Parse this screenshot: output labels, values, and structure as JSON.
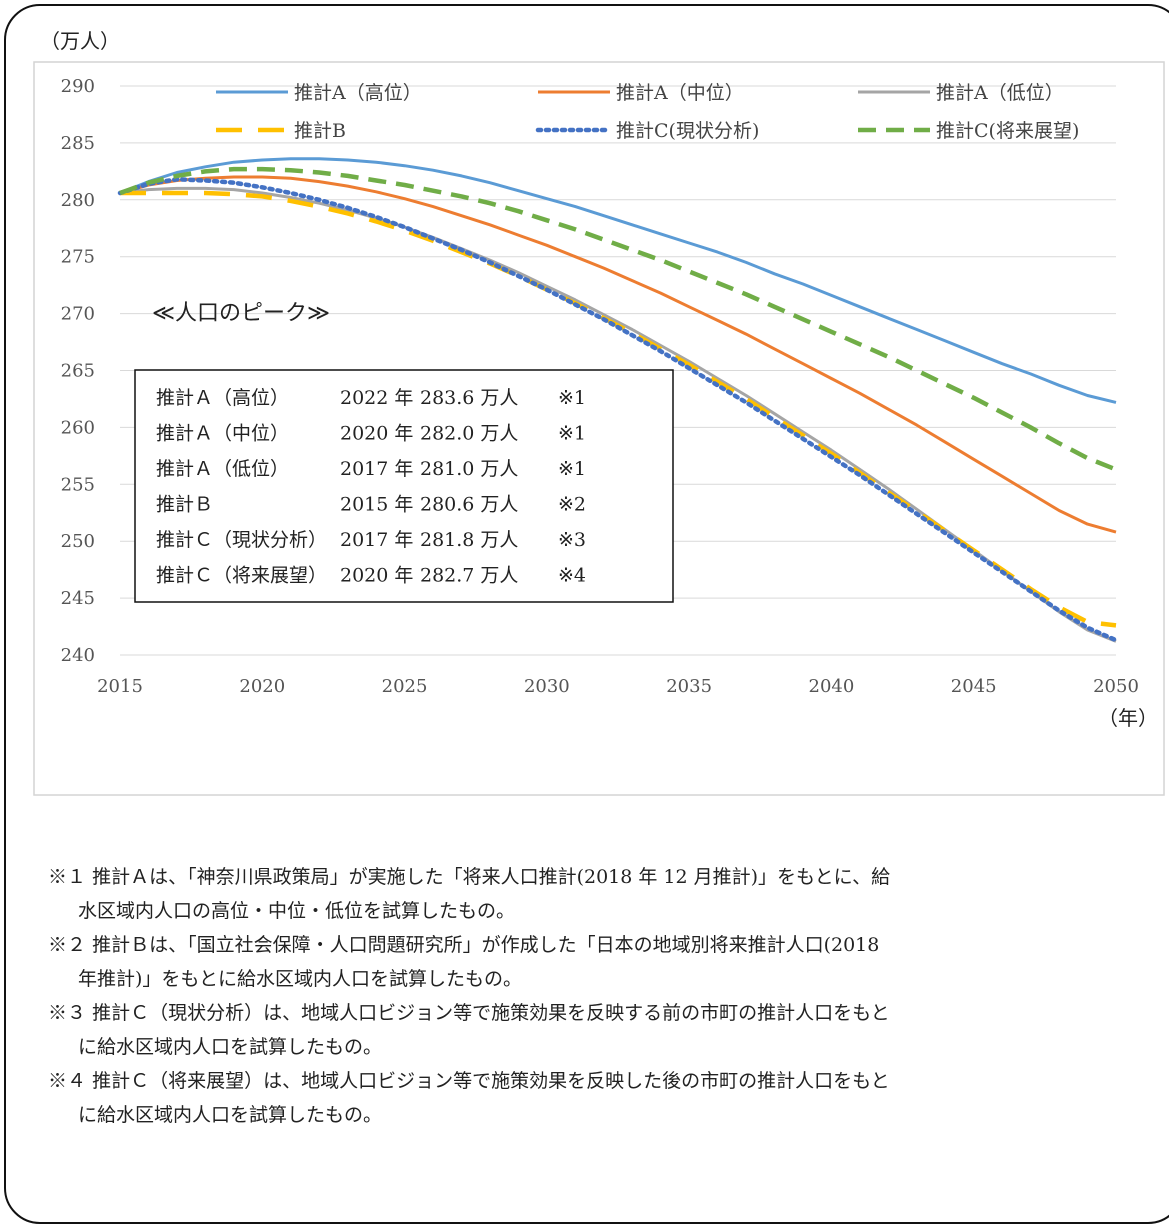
{
  "chart_data": {
    "type": "line",
    "y_unit_label": "（万人）",
    "x_unit_label": "（年）",
    "xlim": [
      2015,
      2050
    ],
    "ylim": [
      240,
      290
    ],
    "x_ticks": [
      "2015",
      "2020",
      "2025",
      "2030",
      "2035",
      "2040",
      "2045",
      "2050"
    ],
    "y_ticks": [
      "290",
      "285",
      "280",
      "275",
      "270",
      "265",
      "260",
      "255",
      "250",
      "245",
      "240"
    ],
    "grid": "horizontal",
    "legend_position": "top",
    "x": [
      2015,
      2016,
      2017,
      2018,
      2019,
      2020,
      2021,
      2022,
      2023,
      2024,
      2025,
      2026,
      2027,
      2028,
      2029,
      2030,
      2031,
      2032,
      2033,
      2034,
      2035,
      2036,
      2037,
      2038,
      2039,
      2040,
      2041,
      2042,
      2043,
      2044,
      2045,
      2046,
      2047,
      2048,
      2049,
      2050
    ],
    "series": [
      {
        "name": "推計A（高位）",
        "color": "#5b9bd5",
        "style": "solid",
        "values": [
          280.6,
          281.6,
          282.4,
          282.9,
          283.3,
          283.5,
          283.6,
          283.6,
          283.5,
          283.3,
          283.0,
          282.6,
          282.1,
          281.5,
          280.8,
          280.1,
          279.4,
          278.6,
          277.8,
          277.0,
          276.2,
          275.4,
          274.5,
          273.5,
          272.6,
          271.6,
          270.6,
          269.6,
          268.6,
          267.6,
          266.6,
          265.6,
          264.7,
          263.7,
          262.8,
          262.2
        ]
      },
      {
        "name": "推計A（中位）",
        "color": "#ed7d31",
        "style": "solid",
        "values": [
          280.6,
          281.3,
          281.7,
          281.9,
          282.0,
          282.0,
          281.9,
          281.6,
          281.2,
          280.7,
          280.1,
          279.4,
          278.6,
          277.8,
          276.9,
          276.0,
          275.0,
          274.0,
          272.9,
          271.8,
          270.6,
          269.4,
          268.2,
          266.9,
          265.6,
          264.3,
          263.0,
          261.6,
          260.2,
          258.7,
          257.2,
          255.7,
          254.2,
          252.7,
          251.5,
          250.8
        ]
      },
      {
        "name": "推計A（低位）",
        "color": "#a5a5a5",
        "style": "solid",
        "values": [
          280.6,
          280.9,
          281.0,
          281.0,
          280.9,
          280.6,
          280.2,
          279.7,
          279.1,
          278.4,
          277.6,
          276.7,
          275.7,
          274.7,
          273.6,
          272.4,
          271.2,
          269.9,
          268.6,
          267.2,
          265.8,
          264.3,
          262.8,
          261.2,
          259.6,
          258.0,
          256.3,
          254.6,
          252.8,
          251.0,
          249.2,
          247.4,
          245.6,
          243.8,
          242.2,
          241.2
        ]
      },
      {
        "name": "推計B",
        "color": "#ffc000",
        "style": "long-dash",
        "values": [
          280.6,
          280.6,
          280.6,
          280.6,
          280.5,
          280.3,
          279.9,
          279.4,
          278.8,
          278.1,
          277.3,
          276.4,
          275.4,
          274.4,
          273.3,
          272.1,
          270.9,
          269.6,
          268.3,
          266.9,
          265.5,
          264.0,
          262.5,
          260.9,
          259.3,
          257.7,
          256.0,
          254.3,
          252.6,
          250.9,
          249.2,
          247.5,
          245.8,
          244.2,
          242.9,
          242.6
        ]
      },
      {
        "name": "推計C(現状分析)",
        "color": "#4472c4",
        "style": "dot",
        "values": [
          280.6,
          281.4,
          281.8,
          281.7,
          281.5,
          281.1,
          280.6,
          280.0,
          279.3,
          278.5,
          277.6,
          276.6,
          275.6,
          274.5,
          273.3,
          272.1,
          270.8,
          269.5,
          268.1,
          266.7,
          265.2,
          263.7,
          262.2,
          260.6,
          259.0,
          257.4,
          255.8,
          254.1,
          252.4,
          250.7,
          249.0,
          247.3,
          245.6,
          243.9,
          242.4,
          241.3
        ]
      },
      {
        "name": "推計C(将来展望)",
        "color": "#70ad47",
        "style": "dash",
        "values": [
          280.6,
          281.5,
          282.1,
          282.5,
          282.7,
          282.7,
          282.6,
          282.4,
          282.1,
          281.7,
          281.3,
          280.8,
          280.3,
          279.7,
          279.0,
          278.2,
          277.4,
          276.5,
          275.6,
          274.7,
          273.7,
          272.7,
          271.7,
          270.6,
          269.5,
          268.4,
          267.3,
          266.2,
          265.0,
          263.8,
          262.6,
          261.3,
          260.0,
          258.6,
          257.3,
          256.3
        ]
      }
    ],
    "annotation_title": "≪人口のピーク≫",
    "peak_table": [
      {
        "label": "推計Ａ（高位）",
        "year": "2022 年",
        "value": "283.6 万人",
        "note": "※1"
      },
      {
        "label": "推計Ａ（中位）",
        "year": "2020 年",
        "value": "282.0 万人",
        "note": "※1"
      },
      {
        "label": "推計Ａ（低位）",
        "year": "2017 年",
        "value": "281.0 万人",
        "note": "※1"
      },
      {
        "label": "推計Ｂ",
        "year": "2015 年",
        "value": "280.6 万人",
        "note": "※2"
      },
      {
        "label": "推計Ｃ（現状分析）",
        "year": "2017 年",
        "value": "281.8 万人",
        "note": "※3"
      },
      {
        "label": "推計Ｃ（将来展望）",
        "year": "2020 年",
        "value": "282.7 万人",
        "note": "※4"
      }
    ]
  },
  "notes": [
    {
      "mark": "※１",
      "line1": "推計Ａは、「神奈川県政策局」が実施した「将来人口推計(2018 年 12 月推計)」をもとに、給",
      "line2": "水区域内人口の高位・中位・低位を試算したもの。"
    },
    {
      "mark": "※２",
      "line1": "推計Ｂは、「国立社会保障・人口問題研究所」が作成した「日本の地域別将来推計人口(2018",
      "line2": "年推計)」をもとに給水区域内人口を試算したもの。"
    },
    {
      "mark": "※３",
      "line1": "推計Ｃ（現状分析）は、地域人口ビジョン等で施策効果を反映する前の市町の推計人口をもと",
      "line2": "に給水区域内人口を試算したもの。"
    },
    {
      "mark": "※４",
      "line1": "推計Ｃ（将来展望）は、地域人口ビジョン等で施策効果を反映した後の市町の推計人口をもと",
      "line2": "に給水区域内人口を試算したもの。"
    }
  ]
}
